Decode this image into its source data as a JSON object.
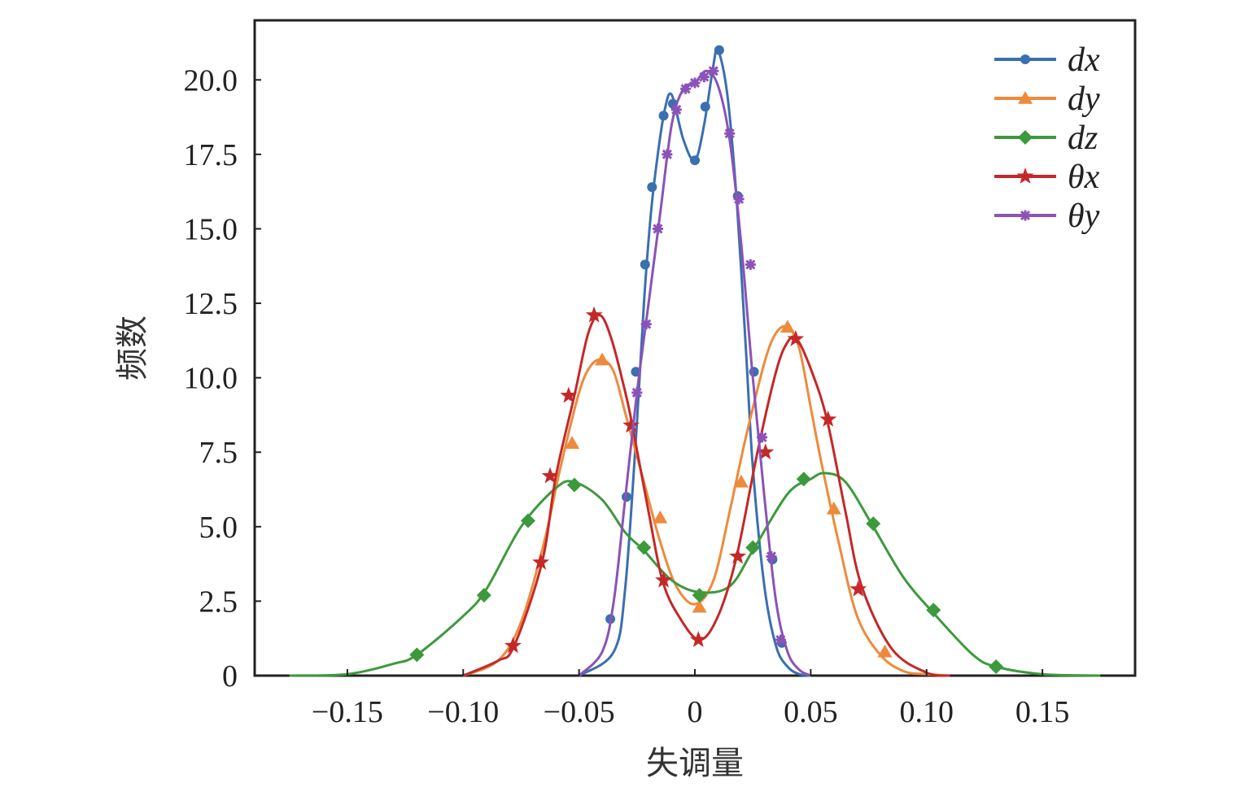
{
  "chart_data": {
    "type": "line",
    "xlabel": "失调量",
    "ylabel": "频数",
    "xlim": [
      -0.19,
      0.19
    ],
    "ylim": [
      0,
      22
    ],
    "x_ticks": [
      -0.15,
      -0.1,
      -0.05,
      0,
      0.05,
      0.1,
      0.15
    ],
    "x_tick_labels": [
      "−0.15",
      "−0.10",
      "−0.05",
      "0",
      "0.05",
      "0.10",
      "0.15"
    ],
    "y_ticks": [
      0,
      2.5,
      5.0,
      7.5,
      10.0,
      12.5,
      15.0,
      17.5,
      20.0
    ],
    "y_tick_labels": [
      "0",
      "2.5",
      "5.0",
      "7.5",
      "10.0",
      "12.5",
      "15.0",
      "17.5",
      "20.0"
    ],
    "legend_position": "top-right",
    "grid": false,
    "series": [
      {
        "name": "dx",
        "color": "#3a6fb0",
        "marker": "circle",
        "x": [
          -0.05,
          -0.035,
          -0.03,
          -0.025,
          -0.022,
          -0.019,
          -0.016,
          -0.013,
          -0.01,
          -0.005,
          0.0,
          0.004,
          0.008,
          0.01,
          0.014,
          0.018,
          0.022,
          0.025,
          0.03,
          0.035,
          0.04,
          0.045,
          0.05
        ],
        "y": [
          0,
          0.8,
          3.0,
          8.5,
          12.5,
          15.5,
          17.5,
          19.0,
          19.5,
          18.0,
          17.3,
          18.5,
          20.5,
          21.0,
          19.5,
          16.0,
          11.0,
          7.0,
          3.0,
          1.0,
          0.3,
          0.05,
          0
        ],
        "marker_x": [
          -0.0365,
          -0.0295,
          -0.0255,
          -0.0215,
          -0.0185,
          -0.0135,
          -0.0095,
          0.0,
          0.0045,
          0.0105,
          0.0185,
          0.0255,
          0.0335,
          0.0375
        ],
        "marker_y": [
          1.9,
          6.0,
          10.2,
          13.8,
          16.4,
          18.8,
          19.2,
          17.3,
          19.1,
          21.0,
          16.1,
          10.2,
          3.9,
          1.1
        ]
      },
      {
        "name": "dy",
        "color": "#ee8a3c",
        "marker": "triangle",
        "x": [
          -0.1,
          -0.085,
          -0.075,
          -0.065,
          -0.058,
          -0.05,
          -0.045,
          -0.04,
          -0.035,
          -0.03,
          -0.022,
          -0.015,
          -0.008,
          0.0,
          0.008,
          0.015,
          0.022,
          0.03,
          0.035,
          0.04,
          0.045,
          0.05,
          0.055,
          0.062,
          0.07,
          0.08,
          0.09,
          0.1,
          0.11
        ],
        "y": [
          0,
          0.5,
          1.8,
          4.5,
          7.0,
          9.5,
          10.4,
          10.6,
          10.2,
          8.8,
          6.5,
          4.5,
          3.0,
          2.4,
          3.2,
          5.5,
          8.0,
          10.5,
          11.5,
          11.7,
          11.0,
          9.0,
          7.0,
          4.5,
          2.0,
          0.7,
          0.15,
          0.05,
          0
        ],
        "marker_x": [
          -0.053,
          -0.04,
          -0.015,
          0.002,
          0.02,
          0.04,
          0.06,
          0.082
        ],
        "marker_y": [
          7.8,
          10.6,
          5.3,
          2.3,
          6.5,
          11.7,
          5.6,
          0.8
        ]
      },
      {
        "name": "dz",
        "color": "#3c9a3c",
        "marker": "diamond",
        "x": [
          -0.175,
          -0.15,
          -0.13,
          -0.12,
          -0.1,
          -0.09,
          -0.075,
          -0.06,
          -0.052,
          -0.04,
          -0.03,
          -0.022,
          -0.01,
          0.002,
          0.015,
          0.025,
          0.04,
          0.05,
          0.056,
          0.065,
          0.077,
          0.09,
          0.103,
          0.12,
          0.13,
          0.15,
          0.175
        ],
        "y": [
          0,
          0.05,
          0.4,
          0.7,
          2.0,
          2.9,
          5.0,
          6.3,
          6.5,
          5.9,
          4.8,
          4.2,
          3.2,
          2.8,
          3.0,
          4.2,
          6.1,
          6.6,
          6.8,
          6.5,
          5.0,
          3.3,
          2.1,
          0.7,
          0.3,
          0.05,
          0
        ],
        "marker_x": [
          -0.12,
          -0.091,
          -0.072,
          -0.052,
          -0.022,
          0.002,
          0.025,
          0.047,
          0.077,
          0.103,
          0.13
        ],
        "marker_y": [
          0.7,
          2.7,
          5.2,
          6.4,
          4.3,
          2.7,
          4.3,
          6.6,
          5.1,
          2.2,
          0.3
        ]
      },
      {
        "name": "θx",
        "color": "#c42828",
        "marker": "star",
        "x": [
          -0.1,
          -0.085,
          -0.078,
          -0.066,
          -0.06,
          -0.052,
          -0.046,
          -0.041,
          -0.036,
          -0.03,
          -0.027,
          -0.02,
          -0.014,
          -0.007,
          0.002,
          0.01,
          0.018,
          0.027,
          0.035,
          0.04,
          0.044,
          0.05,
          0.057,
          0.065,
          0.072,
          0.085,
          0.1,
          0.11
        ],
        "y": [
          0,
          0.5,
          1.0,
          3.8,
          6.7,
          9.4,
          11.5,
          12.1,
          11.3,
          9.5,
          8.4,
          5.5,
          3.2,
          2.0,
          1.2,
          2.0,
          4.0,
          7.5,
          10.2,
          11.2,
          11.3,
          10.3,
          8.6,
          5.5,
          3.0,
          0.9,
          0.1,
          0
        ],
        "marker_x": [
          -0.0785,
          -0.0665,
          -0.0625,
          -0.0545,
          -0.0435,
          -0.0275,
          -0.0135,
          0.0015,
          0.0185,
          0.0305,
          0.0435,
          0.0575,
          0.0705
        ],
        "marker_y": [
          1.0,
          3.8,
          6.7,
          9.4,
          12.1,
          8.4,
          3.2,
          1.2,
          4.0,
          7.5,
          11.3,
          8.6,
          2.9
        ]
      },
      {
        "name": "θy",
        "color": "#8b52b8",
        "marker": "cross",
        "x": [
          -0.05,
          -0.04,
          -0.035,
          -0.03,
          -0.025,
          -0.02,
          -0.015,
          -0.01,
          -0.005,
          0.0,
          0.005,
          0.01,
          0.015,
          0.02,
          0.025,
          0.03,
          0.035,
          0.04,
          0.045,
          0.05
        ],
        "y": [
          0,
          0.8,
          2.5,
          6.0,
          9.5,
          12.5,
          15.5,
          18.5,
          19.7,
          19.9,
          20.3,
          19.8,
          18.0,
          14.5,
          10.0,
          6.0,
          2.5,
          0.8,
          0.2,
          0
        ],
        "marker_x": [
          -0.025,
          -0.021,
          -0.016,
          -0.012,
          -0.008,
          -0.004,
          0.0,
          0.004,
          0.008,
          0.015,
          0.019,
          0.024,
          0.029,
          0.033,
          0.037
        ],
        "marker_y": [
          9.5,
          11.8,
          15.0,
          17.5,
          19.0,
          19.7,
          19.9,
          20.1,
          20.3,
          18.2,
          16.0,
          13.8,
          8.0,
          4.0,
          1.2
        ]
      }
    ]
  }
}
